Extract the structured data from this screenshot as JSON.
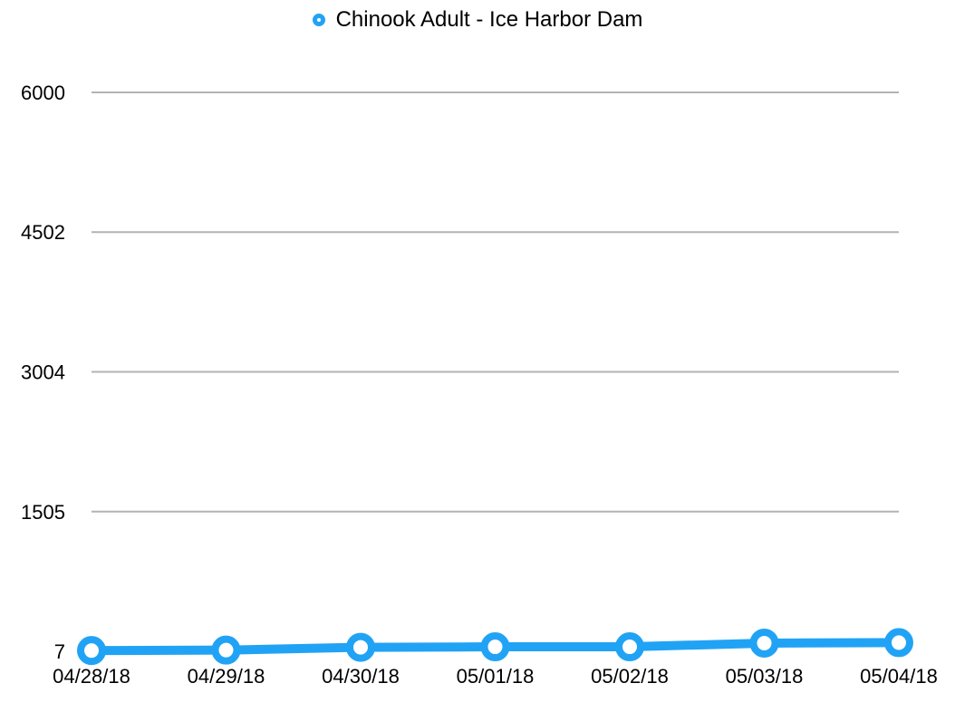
{
  "chart_data": {
    "type": "line",
    "title": "",
    "xlabel": "",
    "ylabel": "",
    "categories": [
      "04/28/18",
      "04/29/18",
      "04/30/18",
      "05/01/18",
      "05/02/18",
      "05/03/18",
      "05/04/18"
    ],
    "series": [
      {
        "name": "Chinook Adult - Ice Harbor Dam",
        "values": [
          15,
          20,
          50,
          55,
          55,
          95,
          100
        ],
        "color": "#21a3f5"
      }
    ],
    "y_ticks": [
      "7",
      "1505",
      "3004",
      "4502",
      "6000"
    ],
    "y_tick_values": [
      7,
      1505,
      3004,
      4502,
      6000
    ],
    "ylim": [
      7,
      6000
    ],
    "grid": true,
    "legend_position": "top-center",
    "marker": "hollow-circle"
  }
}
